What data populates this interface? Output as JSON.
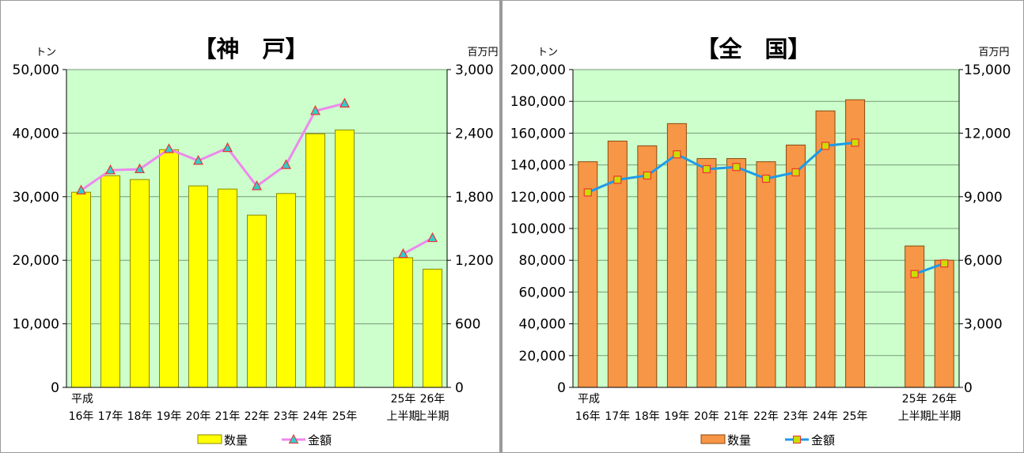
{
  "chart_data": [
    {
      "type": "bar",
      "title": "【神　戸】",
      "left_axis_unit": "トン",
      "right_axis_unit": "百万円",
      "categories": [
        [
          "平成",
          "16年"
        ],
        [
          "",
          "17年"
        ],
        [
          "",
          "18年"
        ],
        [
          "",
          "19年"
        ],
        [
          "",
          "20年"
        ],
        [
          "",
          "21年"
        ],
        [
          "",
          "22年"
        ],
        [
          "",
          "23年"
        ],
        [
          "",
          "24年"
        ],
        [
          "",
          "25年"
        ],
        [
          "",
          ""
        ],
        [
          "25年",
          "上半期"
        ],
        [
          "26年",
          "上半期"
        ]
      ],
      "series": [
        {
          "name": "数量",
          "kind": "bar",
          "axis": "left",
          "values": [
            30700,
            33300,
            32700,
            37400,
            31700,
            31200,
            27100,
            30500,
            39900,
            40500,
            null,
            20400,
            18600
          ]
        },
        {
          "name": "金額",
          "kind": "line",
          "axis": "right",
          "values": [
            1860,
            2050,
            2060,
            2250,
            2140,
            2260,
            1900,
            2100,
            2610,
            2680,
            null,
            1260,
            1410
          ]
        }
      ],
      "ylim_left": [
        0,
        50000
      ],
      "ylim_right": [
        0,
        3000
      ],
      "yticks_left": [
        "0",
        "10,000",
        "20,000",
        "30,000",
        "40,000",
        "50,000"
      ],
      "yticks_right": [
        "0",
        "600",
        "1,200",
        "1,800",
        "2,400",
        "3,000"
      ],
      "grid": true,
      "legend_position": "bottom",
      "colors": {
        "plot_bg": "#ccffcc",
        "bar": "#ffff00",
        "bar_edge": "#8a8a00",
        "line": "#ee88ee",
        "marker_fill": "#33cccc",
        "marker_edge": "#ee3333"
      }
    },
    {
      "type": "bar",
      "title": "【全　国】",
      "left_axis_unit": "トン",
      "right_axis_unit": "百万円",
      "categories": [
        [
          "平成",
          "16年"
        ],
        [
          "",
          "17年"
        ],
        [
          "",
          "18年"
        ],
        [
          "",
          "19年"
        ],
        [
          "",
          "20年"
        ],
        [
          "",
          "21年"
        ],
        [
          "",
          "22年"
        ],
        [
          "",
          "23年"
        ],
        [
          "",
          "24年"
        ],
        [
          "",
          "25年"
        ],
        [
          "",
          ""
        ],
        [
          "25年",
          "上半期"
        ],
        [
          "26年",
          "上半期"
        ]
      ],
      "series": [
        {
          "name": "数量",
          "kind": "bar",
          "axis": "left",
          "values": [
            142000,
            155000,
            152000,
            166000,
            144000,
            144000,
            142000,
            152500,
            174000,
            181000,
            null,
            89000,
            80000
          ]
        },
        {
          "name": "金額",
          "kind": "line",
          "axis": "right",
          "values": [
            9200,
            9800,
            10000,
            11000,
            10300,
            10400,
            9850,
            10150,
            11400,
            11550,
            null,
            5350,
            5850
          ]
        }
      ],
      "ylim_left": [
        0,
        200000
      ],
      "ylim_right": [
        0,
        15000
      ],
      "yticks_left": [
        "0",
        "20,000",
        "40,000",
        "60,000",
        "80,000",
        "100,000",
        "120,000",
        "140,000",
        "160,000",
        "180,000",
        "200,000"
      ],
      "yticks_right": [
        "0",
        "3,000",
        "6,000",
        "9,000",
        "12,000",
        "15,000"
      ],
      "grid": true,
      "legend_position": "bottom",
      "colors": {
        "plot_bg": "#ccffcc",
        "bar": "#f79646",
        "bar_edge": "#8a4a10",
        "line": "#1e9be8",
        "marker_fill": "#ccdd00",
        "marker_edge": "#ee3333"
      }
    }
  ]
}
